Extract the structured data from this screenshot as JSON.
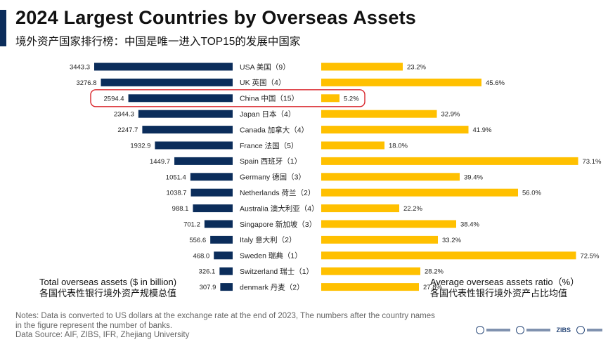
{
  "header": {
    "title": "2024 Largest Countries by Overseas Assets",
    "subtitle": "境外资产国家排行榜：中国是唯一进入TOP15的发展中国家"
  },
  "captions": {
    "left_line1": "Total overseas assets ($ in billion)",
    "left_line2": "各国代表性银行境外资产规模总值",
    "right_line1": "Average overseas assets ratio（%）",
    "right_line2": "各国代表性银行境外资产占比均值"
  },
  "notes": {
    "line1": "Notes: Data is converted to US dollars at the exchange rate at the end of 2023, The numbers after the country names",
    "line2": "in the figure represent the number of banks.",
    "line3": "Data Source: AIF, ZIBS, IFR, Zhejiang University"
  },
  "logos": {
    "zibs": "ZIBS"
  },
  "colors": {
    "assets_bar": "#0b2d5b",
    "ratio_bar": "#ffc000",
    "highlight_outline": "#d9262b",
    "accent": "#0b2d5b"
  },
  "chart_data": {
    "type": "bar",
    "layout": "butterfly",
    "highlight": "China 中国（15）",
    "categories": [
      "USA 美国（9）",
      "UK 英国（4）",
      "China 中国（15）",
      "Japan 日本（4）",
      "Canada 加拿大（4）",
      "France 法国（5）",
      "Spain 西班牙（1）",
      "Germany 德国（3）",
      "Netherlands 荷兰（2）",
      "Australia 澳大利亚（4）",
      "Singapore 新加坡（3）",
      "Italy 意大利（2）",
      "Sweden 瑞典（1）",
      "Switzerland 瑞士（1）",
      "denmark 丹麦（2）"
    ],
    "series": [
      {
        "name": "Total overseas assets ($ in billion)",
        "side": "left",
        "values": [
          3443.3,
          3276.8,
          2594.4,
          2344.3,
          2247.7,
          1932.9,
          1449.7,
          1051.4,
          1038.7,
          988.1,
          701.2,
          556.6,
          468.0,
          326.1,
          307.9
        ],
        "labels": [
          "3443.3",
          "3276.8",
          "2594.4",
          "2344.3",
          "2247.7",
          "1932.9",
          "1449.7",
          "1051.4",
          "1038.7",
          "988.1",
          "701.2",
          "556.6",
          "468.0",
          "326.1",
          "307.9"
        ]
      },
      {
        "name": "Average overseas assets ratio（%）",
        "side": "right",
        "values": [
          23.2,
          45.6,
          5.2,
          32.9,
          41.9,
          18.0,
          73.1,
          39.4,
          56.0,
          22.2,
          38.4,
          33.2,
          72.5,
          28.2,
          27.8
        ],
        "labels": [
          "23.2%",
          "45.6%",
          "5.2%",
          "32.9%",
          "41.9%",
          "18.0%",
          "73.1%",
          "39.4%",
          "56.0%",
          "22.2%",
          "38.4%",
          "33.2%",
          "72.5%",
          "28.2%",
          "27.8%"
        ]
      }
    ]
  }
}
